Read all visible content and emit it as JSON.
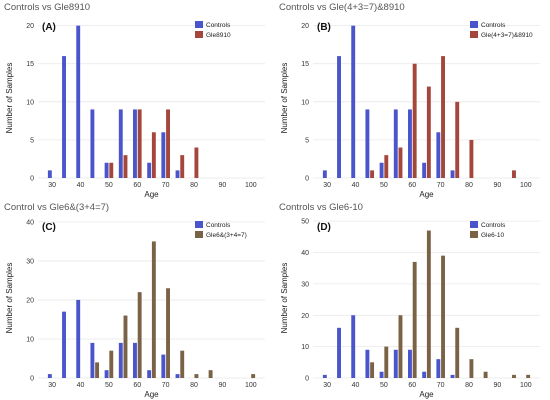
{
  "colors": {
    "controls": "#4a55cc",
    "gle8910": "#a4463c",
    "gle437_8910": "#a4463c",
    "gle6_347": "#7a6246",
    "gle6_10": "#7a6246",
    "grid": "#e8e8e8"
  },
  "chart_data": [
    {
      "type": "bar",
      "title": "Controls vs Gle8910",
      "panel_label": "(A)",
      "xlabel": "Age",
      "ylabel": "Number of Samples",
      "xlim": [
        25,
        105
      ],
      "ylim": [
        0,
        21
      ],
      "xticks": [
        30,
        40,
        50,
        60,
        70,
        80,
        90,
        100
      ],
      "yticks": [
        0,
        5,
        10,
        15,
        20
      ],
      "legend_position": "top-right",
      "series": [
        {
          "name": "Controls",
          "color_key": "controls",
          "x": [
            30,
            35,
            40,
            45,
            50,
            55,
            60,
            65,
            70,
            75
          ],
          "values": [
            1,
            16,
            20,
            9,
            2,
            9,
            9,
            2,
            6,
            1
          ]
        },
        {
          "name": "Gle8910",
          "color_key": "gle8910",
          "x": [
            50,
            55,
            60,
            65,
            70,
            75,
            80
          ],
          "values": [
            2,
            3,
            9,
            6,
            9,
            3,
            4
          ]
        }
      ]
    },
    {
      "type": "bar",
      "title": "Controls vs Gle(4+3=7)&8910",
      "panel_label": "(B)",
      "xlabel": "Age",
      "ylabel": "Number of Samples",
      "xlim": [
        25,
        105
      ],
      "ylim": [
        0,
        21
      ],
      "xticks": [
        30,
        40,
        50,
        60,
        70,
        80,
        90,
        100
      ],
      "yticks": [
        0,
        5,
        10,
        15,
        20
      ],
      "legend_position": "top-right",
      "series": [
        {
          "name": "Controls",
          "color_key": "controls",
          "x": [
            30,
            35,
            40,
            45,
            50,
            55,
            60,
            65,
            70,
            75
          ],
          "values": [
            1,
            16,
            20,
            9,
            2,
            9,
            9,
            2,
            6,
            1
          ]
        },
        {
          "name": "Gle(4+3=7)&8910",
          "color_key": "gle437_8910",
          "x": [
            45,
            50,
            55,
            60,
            65,
            70,
            75,
            80,
            95
          ],
          "values": [
            1,
            3,
            4,
            15,
            12,
            16,
            10,
            5,
            1
          ]
        }
      ]
    },
    {
      "type": "bar",
      "title": "Control vs Gle6&(3+4=7)",
      "panel_label": "(C)",
      "xlabel": "Age",
      "ylabel": "Number of Samples",
      "xlim": [
        25,
        105
      ],
      "ylim": [
        0,
        41
      ],
      "xticks": [
        30,
        40,
        50,
        60,
        70,
        80,
        90,
        100
      ],
      "yticks": [
        0,
        10,
        20,
        30,
        40
      ],
      "legend_position": "top-right",
      "series": [
        {
          "name": "Controls",
          "color_key": "controls",
          "x": [
            30,
            35,
            40,
            45,
            50,
            55,
            60,
            65,
            70,
            75
          ],
          "values": [
            1,
            17,
            20,
            9,
            2,
            9,
            9,
            2,
            6,
            1
          ]
        },
        {
          "name": "Gle6&(3+4=7)",
          "color_key": "gle6_347",
          "x": [
            45,
            50,
            55,
            60,
            65,
            70,
            75,
            80,
            85,
            100
          ],
          "values": [
            4,
            7,
            16,
            22,
            35,
            23,
            7,
            1,
            2,
            1
          ]
        }
      ]
    },
    {
      "type": "bar",
      "title": "Controls vs Gle6-10",
      "panel_label": "(D)",
      "xlabel": "Age",
      "ylabel": "Number of Samples",
      "xlim": [
        25,
        105
      ],
      "ylim": [
        0,
        51
      ],
      "xticks": [
        30,
        40,
        50,
        60,
        70,
        80,
        90,
        100
      ],
      "yticks": [
        0,
        10,
        20,
        30,
        40,
        50
      ],
      "legend_position": "top-right",
      "series": [
        {
          "name": "Controls",
          "color_key": "controls",
          "x": [
            30,
            35,
            40,
            45,
            50,
            55,
            60,
            65,
            70,
            75
          ],
          "values": [
            1,
            16,
            20,
            9,
            2,
            9,
            9,
            2,
            6,
            1
          ]
        },
        {
          "name": "Gle6-10",
          "color_key": "gle6_10",
          "x": [
            45,
            50,
            55,
            60,
            65,
            70,
            75,
            80,
            85,
            95,
            100
          ],
          "values": [
            5,
            10,
            20,
            37,
            47,
            39,
            16,
            6,
            2,
            1,
            1
          ]
        }
      ]
    }
  ]
}
